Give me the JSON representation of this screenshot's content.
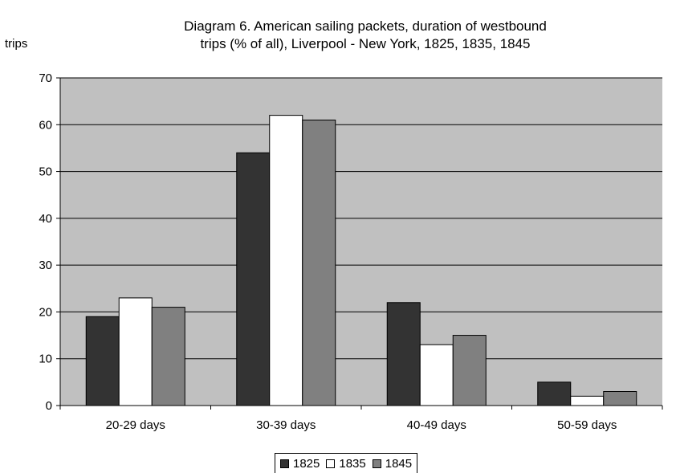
{
  "chart_data": {
    "type": "bar",
    "title_lines": [
      "Diagram 6. American sailing packets, duration of westbound",
      "trips (% of all), Liverpool - New York, 1825, 1835, 1845"
    ],
    "ylabel": "trips",
    "xlabel": "",
    "categories": [
      "20-29 days",
      "30-39 days",
      "40-49 days",
      "50-59 days"
    ],
    "series": [
      {
        "name": "1825",
        "values": [
          19,
          54,
          22,
          5
        ],
        "color": "#333333"
      },
      {
        "name": "1835",
        "values": [
          23,
          62,
          13,
          2
        ],
        "color": "#ffffff"
      },
      {
        "name": "1845",
        "values": [
          21,
          61,
          15,
          3
        ],
        "color": "#808080"
      }
    ],
    "ylim": [
      0,
      70
    ],
    "yticks": [
      0,
      10,
      20,
      30,
      40,
      50,
      60,
      70
    ],
    "grid": true,
    "plot_background": "#c0c0c0",
    "legend_position": "bottom"
  }
}
